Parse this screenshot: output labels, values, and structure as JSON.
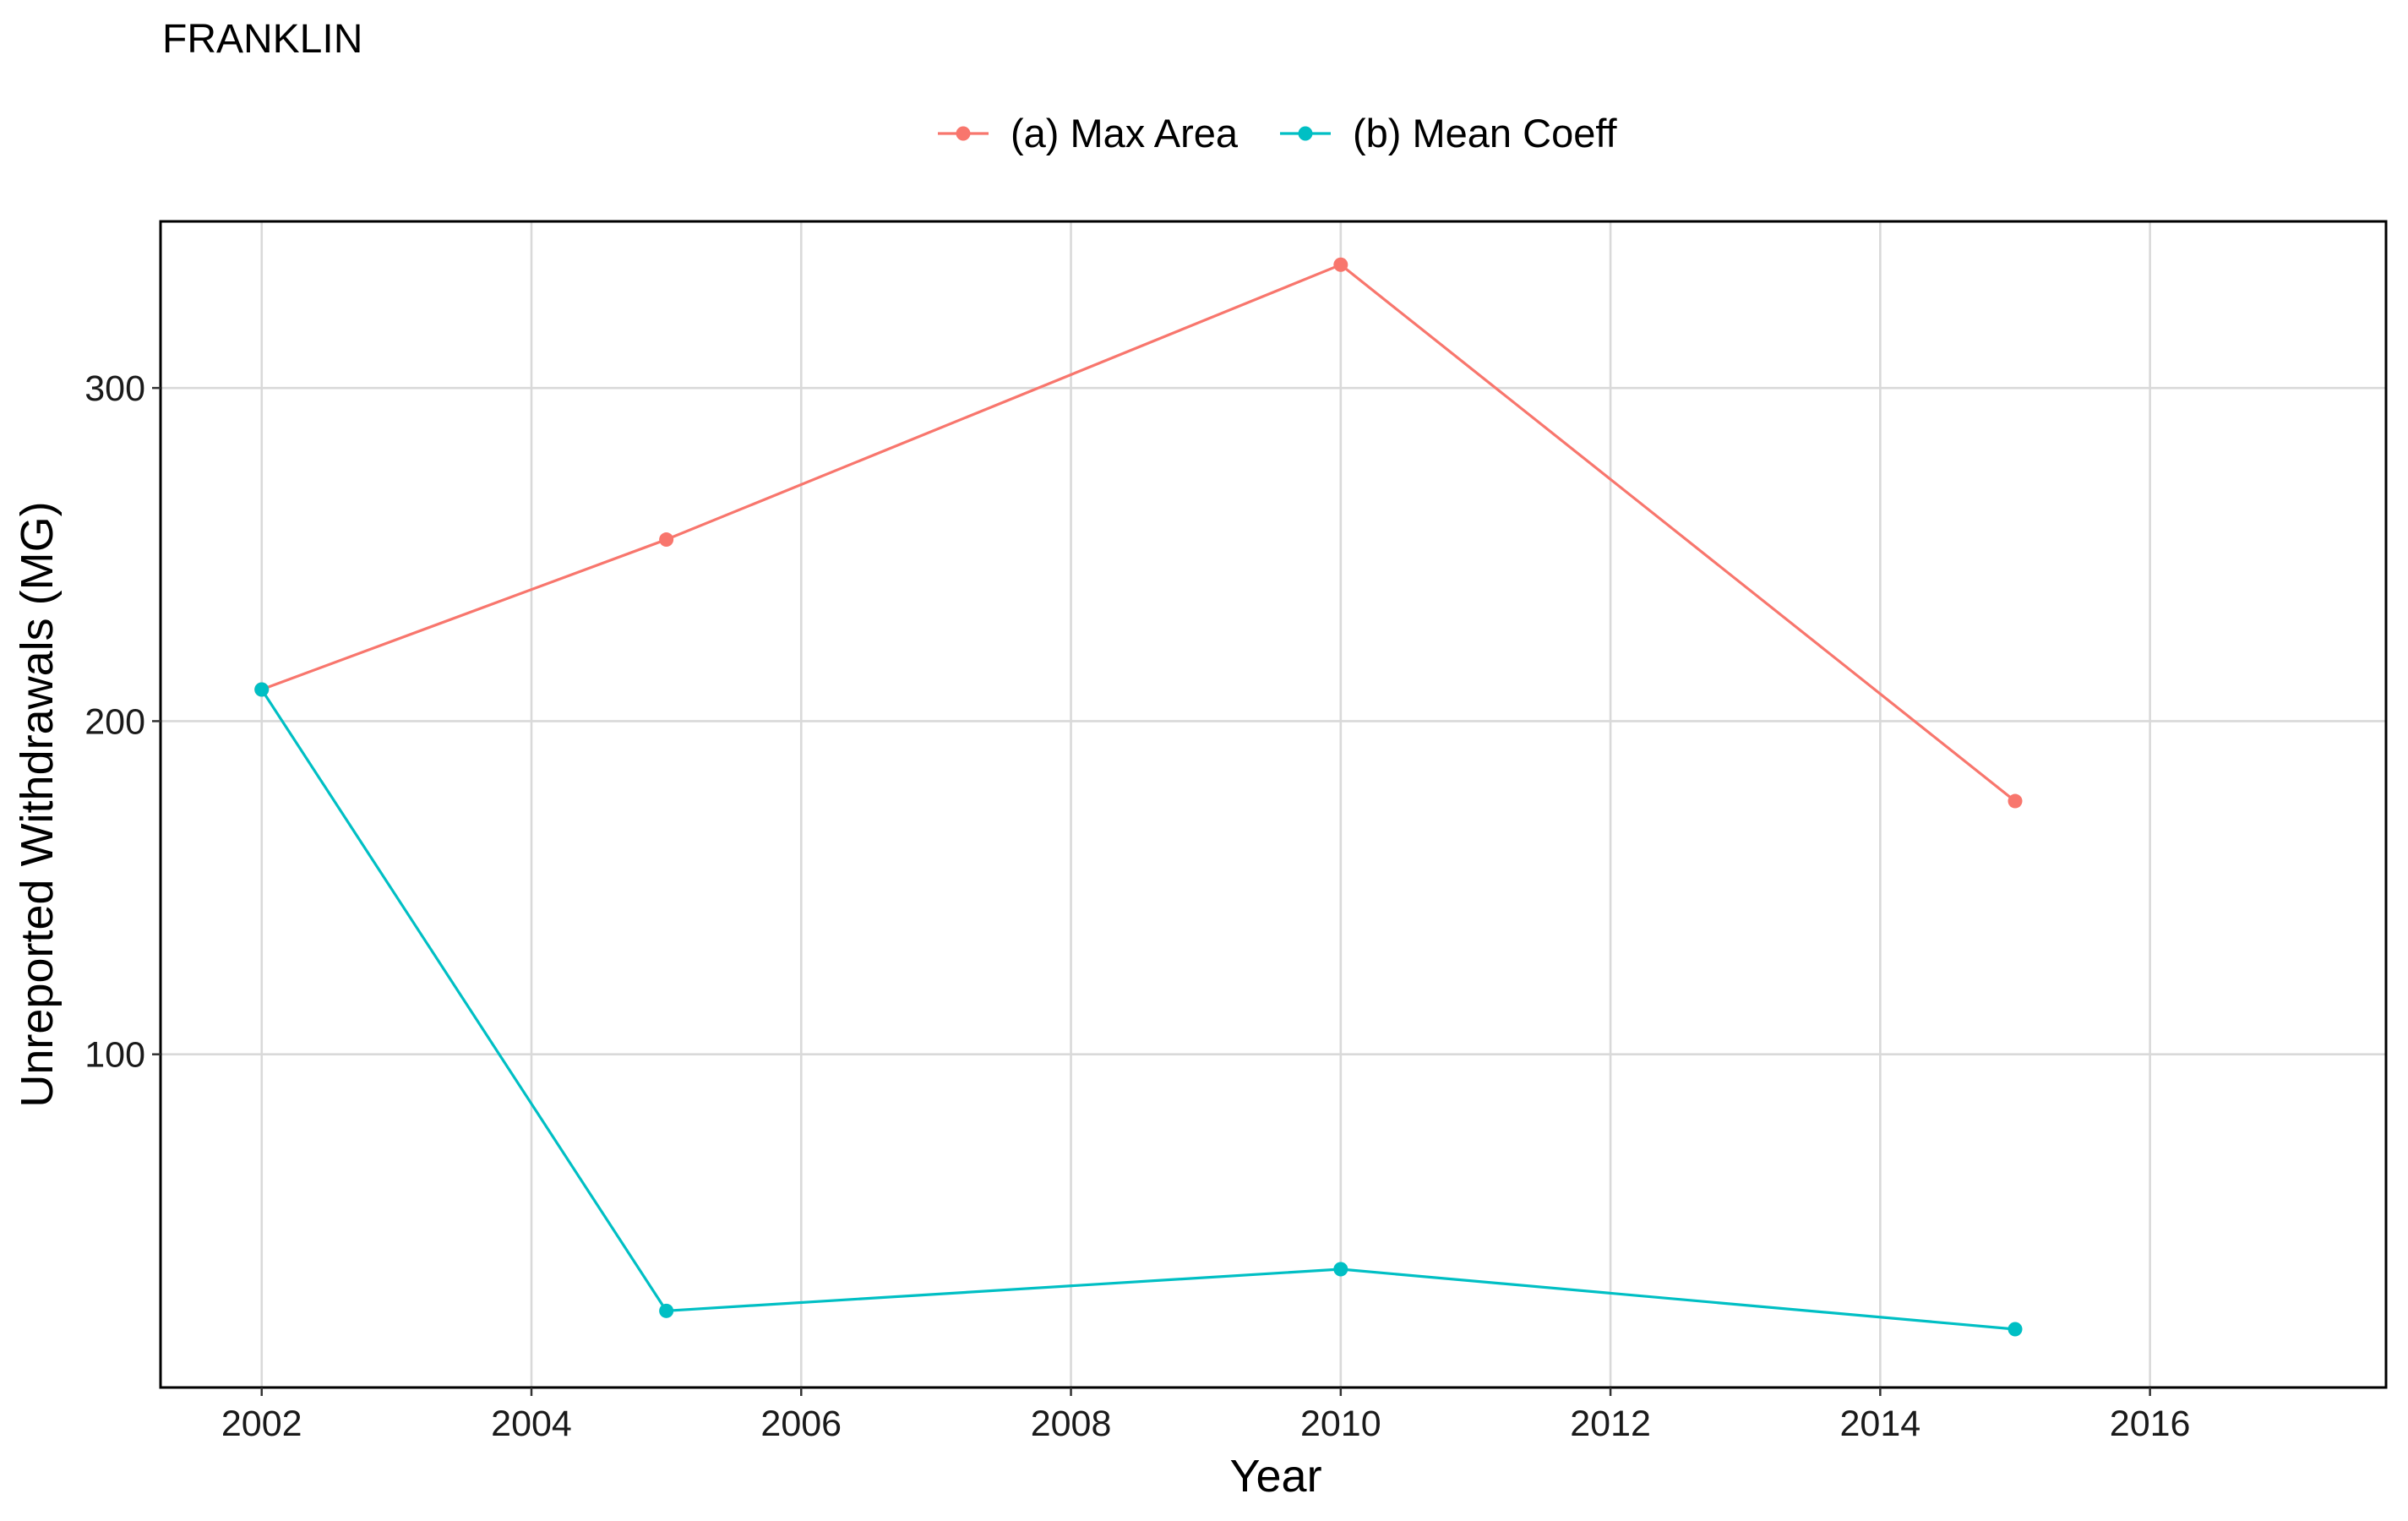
{
  "chart_data": {
    "type": "line",
    "title": "FRANKLIN",
    "xlabel": "Year",
    "ylabel": "Unreported Withdrawals (MG)",
    "xlim": [
      2001.25,
      2017.75
    ],
    "ylim": [
      0,
      350
    ],
    "x_ticks": [
      2002,
      2004,
      2006,
      2008,
      2010,
      2012,
      2014,
      2016
    ],
    "y_ticks": [
      100,
      200,
      300
    ],
    "grid": true,
    "legend_position": "top",
    "series": [
      {
        "name": "(a) Max Area",
        "color": "#F8766D",
        "x": [
          2002,
          2005,
          2010,
          2015
        ],
        "values": [
          209.5,
          254.5,
          337,
          176
        ]
      },
      {
        "name": "(b) Mean Coeff",
        "color": "#00BFC4",
        "x": [
          2002,
          2005,
          2010,
          2015
        ],
        "values": [
          209.5,
          23,
          35.5,
          17.5
        ]
      }
    ]
  }
}
